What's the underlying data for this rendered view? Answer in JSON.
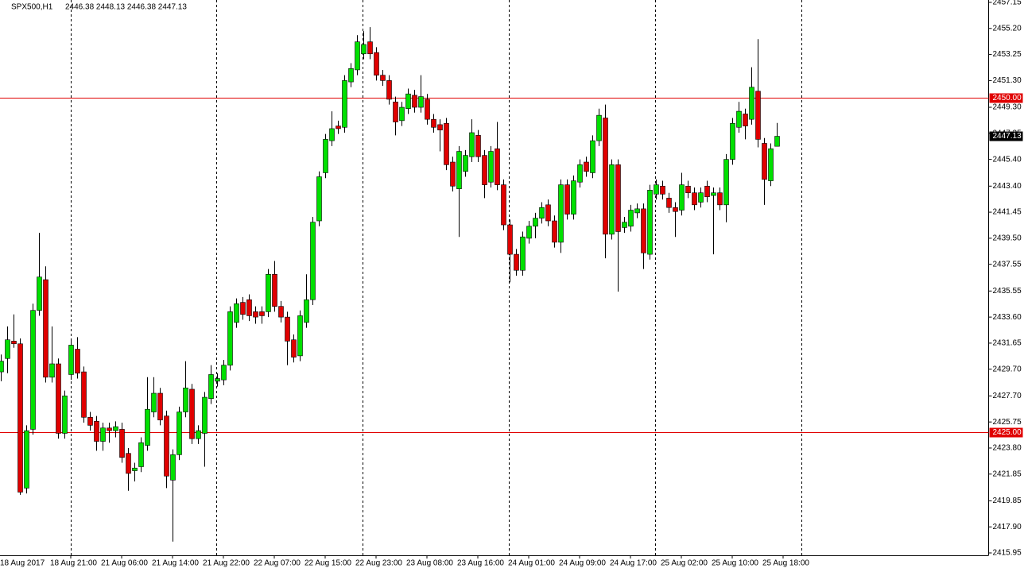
{
  "chart_data": {
    "type": "candlestick",
    "title": "SPX500,H1",
    "subtitle": "2446.38 2448.13 2446.38 2447.13",
    "bull_color": "#00e000",
    "bear_color": "#e00000",
    "x_labels": [
      "18 Aug 2017",
      "18 Aug 21:00",
      "21 Aug 06:00",
      "21 Aug 14:00",
      "21 Aug 22:00",
      "22 Aug 07:00",
      "22 Aug 15:00",
      "22 Aug 23:00",
      "23 Aug 08:00",
      "23 Aug 16:00",
      "24 Aug 01:00",
      "24 Aug 09:00",
      "24 Aug 17:00",
      "25 Aug 02:00",
      "25 Aug 10:00",
      "25 Aug 18:00"
    ],
    "open": [
      2429.5,
      2430.5,
      2431.8,
      2431.6,
      2420.8,
      2425.2,
      2434.1,
      2436.4,
      2429.1,
      2430.1,
      2424.9,
      2429.3,
      2431.2,
      2429.5,
      2426.1,
      2425.8,
      2424.3,
      2425.3,
      2425.1,
      2425.2,
      2423.4,
      2422.1,
      2422.4,
      2424.0,
      2426.5,
      2427.9,
      2426.2,
      2421.4,
      2423.3,
      2426.5,
      2428.2,
      2424.5,
      2424.9,
      2427.5,
      2428.8,
      2428.9,
      2430.0,
      2433.2,
      2434.7,
      2434.9,
      2434.0,
      2434.0,
      2434.0,
      2436.8,
      2434.4,
      2433.6,
      2431.9,
      2430.7,
      2433.2,
      2434.9,
      2440.8,
      2444.4,
      2446.8,
      2447.9,
      2447.8,
      2451.2,
      2452.1,
      2453.3,
      2454.2,
      2453.4,
      2451.7,
      2451.3,
      2449.7,
      2448.3,
      2449.2,
      2450.2,
      2449.3,
      2449.9,
      2448.4,
      2448.0,
      2448.1,
      2445.2,
      2443.2,
      2444.5,
      2445.6,
      2447.2,
      2445.7,
      2443.7,
      2446.2,
      2443.5,
      2440.5,
      2438.3,
      2437.1,
      2439.5,
      2440.4,
      2441.0,
      2442.0,
      2440.8,
      2439.2,
      2443.5,
      2441.3,
      2443.7,
      2445.2,
      2444.4,
      2446.8,
      2448.5,
      2439.8,
      2445.0,
      2440.3,
      2440.4,
      2441.4,
      2441.7,
      2438.3,
      2442.8,
      2443.4,
      2442.5,
      2441.8,
      2441.6,
      2443.4,
      2442.9,
      2442.2,
      2443.4,
      2442.7,
      2442.9,
      2442.0,
      2445.4,
      2447.8,
      2448.8,
      2448.4,
      2450.5,
      2446.6,
      2443.8,
      2446.38
    ],
    "high": [
      2430.8,
      2432.9,
      2433.8,
      2432.0,
      2425.5,
      2434.6,
      2439.9,
      2437.4,
      2432.9,
      2430.5,
      2428.1,
      2432.0,
      2432.1,
      2429.9,
      2426.5,
      2426.2,
      2425.7,
      2425.7,
      2425.8,
      2425.7,
      2423.8,
      2422.7,
      2424.6,
      2429.1,
      2429.1,
      2428.3,
      2426.6,
      2423.7,
      2426.9,
      2430.3,
      2428.6,
      2425.5,
      2428.0,
      2430.0,
      2429.4,
      2430.4,
      2434.4,
      2435.0,
      2435.1,
      2435.3,
      2434.4,
      2434.4,
      2437.2,
      2437.8,
      2434.8,
      2434.0,
      2432.3,
      2434.1,
      2436.8,
      2441.1,
      2444.5,
      2447.3,
      2449.0,
      2448.3,
      2451.7,
      2452.6,
      2454.7,
      2455.0,
      2455.3,
      2453.8,
      2452.1,
      2451.7,
      2450.1,
      2449.7,
      2450.7,
      2450.6,
      2451.7,
      2450.3,
      2448.8,
      2448.4,
      2448.5,
      2445.6,
      2446.4,
      2446.1,
      2448.4,
      2447.6,
      2446.1,
      2446.4,
      2448.2,
      2443.9,
      2440.9,
      2438.7,
      2440.0,
      2440.8,
      2441.4,
      2442.2,
      2442.4,
      2441.2,
      2443.9,
      2443.9,
      2444.2,
      2445.4,
      2445.6,
      2447.2,
      2449.2,
      2449.5,
      2445.4,
      2445.4,
      2441.1,
      2442.0,
      2442.1,
      2442.1,
      2443.5,
      2443.9,
      2443.8,
      2442.9,
      2442.2,
      2444.4,
      2443.8,
      2443.3,
      2443.3,
      2443.8,
      2443.3,
      2443.3,
      2445.8,
      2448.5,
      2449.7,
      2449.2,
      2452.3,
      2454.4,
      2447.0,
      2446.6,
      2448.13
    ],
    "low": [
      2428.8,
      2429.4,
      2431.3,
      2420.3,
      2420.4,
      2424.8,
      2433.7,
      2428.7,
      2428.7,
      2424.5,
      2424.5,
      2428.9,
      2429.0,
      2425.7,
      2425.1,
      2423.6,
      2423.6,
      2424.2,
      2424.6,
      2422.7,
      2420.6,
      2421.3,
      2422.0,
      2423.6,
      2426.1,
      2425.5,
      2420.8,
      2416.8,
      2422.9,
      2426.1,
      2424.1,
      2424.1,
      2422.4,
      2427.1,
      2428.4,
      2428.5,
      2429.6,
      2432.8,
      2433.4,
      2433.3,
      2433.1,
      2433.1,
      2433.6,
      2434.0,
      2433.2,
      2430.0,
      2430.2,
      2430.3,
      2432.8,
      2434.5,
      2440.4,
      2444.0,
      2446.4,
      2447.3,
      2447.4,
      2450.8,
      2451.7,
      2452.9,
      2452.9,
      2451.3,
      2450.9,
      2449.5,
      2447.2,
      2447.9,
      2448.8,
      2448.9,
      2448.9,
      2448.0,
      2447.4,
      2446.0,
      2444.6,
      2443.0,
      2439.6,
      2444.1,
      2445.2,
      2445.2,
      2442.5,
      2443.3,
      2443.1,
      2440.1,
      2436.2,
      2436.7,
      2436.7,
      2439.1,
      2439.5,
      2440.6,
      2440.4,
      2438.8,
      2438.4,
      2440.9,
      2440.9,
      2443.3,
      2444.1,
      2444.0,
      2446.4,
      2438.0,
      2439.4,
      2435.5,
      2439.9,
      2440.0,
      2441.0,
      2437.2,
      2437.9,
      2442.4,
      2442.4,
      2441.4,
      2439.6,
      2441.2,
      2442.5,
      2441.6,
      2441.8,
      2442.2,
      2438.3,
      2441.6,
      2440.7,
      2445.0,
      2447.4,
      2446.9,
      2448.0,
      2446.3,
      2442.0,
      2443.4,
      2446.38
    ],
    "close": [
      2430.3,
      2431.9,
      2431.6,
      2420.5,
      2425.1,
      2434.1,
      2436.6,
      2429.1,
      2430.1,
      2424.9,
      2427.7,
      2431.5,
      2429.4,
      2426.1,
      2425.5,
      2424.3,
      2425.3,
      2425.1,
      2425.4,
      2423.1,
      2421.9,
      2422.3,
      2424.2,
      2426.7,
      2427.9,
      2425.9,
      2421.7,
      2423.3,
      2426.5,
      2428.3,
      2424.5,
      2425.1,
      2427.6,
      2429.3,
      2429.0,
      2430.0,
      2434.0,
      2434.6,
      2433.8,
      2433.7,
      2433.6,
      2433.7,
      2436.8,
      2434.4,
      2433.6,
      2431.8,
      2430.6,
      2433.7,
      2434.9,
      2440.7,
      2444.1,
      2446.9,
      2447.7,
      2447.7,
      2451.3,
      2452.2,
      2454.2,
      2454.0,
      2453.3,
      2451.7,
      2451.3,
      2449.9,
      2448.2,
      2449.3,
      2450.3,
      2449.3,
      2450.1,
      2448.4,
      2447.8,
      2447.6,
      2445.0,
      2443.4,
      2446.0,
      2445.7,
      2447.4,
      2445.6,
      2443.5,
      2446.0,
      2443.5,
      2440.5,
      2438.3,
      2437.1,
      2439.6,
      2440.4,
      2441.0,
      2441.8,
      2440.8,
      2439.2,
      2443.5,
      2441.3,
      2443.8,
      2445.0,
      2444.5,
      2446.8,
      2448.7,
      2439.8,
      2445.0,
      2440.0,
      2440.7,
      2441.6,
      2441.7,
      2438.4,
      2443.1,
      2443.5,
      2442.8,
      2441.8,
      2441.5,
      2443.5,
      2442.9,
      2442.0,
      2442.9,
      2442.6,
      2442.9,
      2442.0,
      2445.4,
      2448.1,
      2449.0,
      2447.9,
      2450.8,
      2446.9,
      2443.9,
      2446.2,
      2447.13
    ],
    "ylim": [
      2415.95,
      2457.15
    ],
    "yticks": [
      2457.15,
      {
        "value": 2455.2,
        "label": "2455.20"
      },
      2453.25,
      {
        "value": 2451.3,
        "label": "2451.30"
      },
      {
        "value": 2449.3,
        "label": "2449.30"
      },
      2447.35,
      {
        "value": 2445.4,
        "label": "2445.40"
      },
      {
        "value": 2443.4,
        "label": "2443.40"
      },
      2441.45,
      {
        "value": 2439.5,
        "label": "2439.50"
      },
      2437.55,
      2435.55,
      {
        "value": 2433.6,
        "label": "2433.60"
      },
      2431.65,
      {
        "value": 2429.7,
        "label": "2429.70"
      },
      {
        "value": 2427.7,
        "label": "2427.70"
      },
      2425.75,
      {
        "value": 2423.8,
        "label": "2423.80"
      },
      2421.85,
      2419.85,
      {
        "value": 2417.9,
        "label": "2417.90"
      },
      2415.95
    ],
    "hlines": [
      {
        "value": 2450,
        "label": "2450.00"
      },
      {
        "value": 2425,
        "label": "2425.00"
      }
    ],
    "hline_color": "#e00000",
    "last_price": {
      "value": 2447.13,
      "label": "2447.13"
    }
  }
}
